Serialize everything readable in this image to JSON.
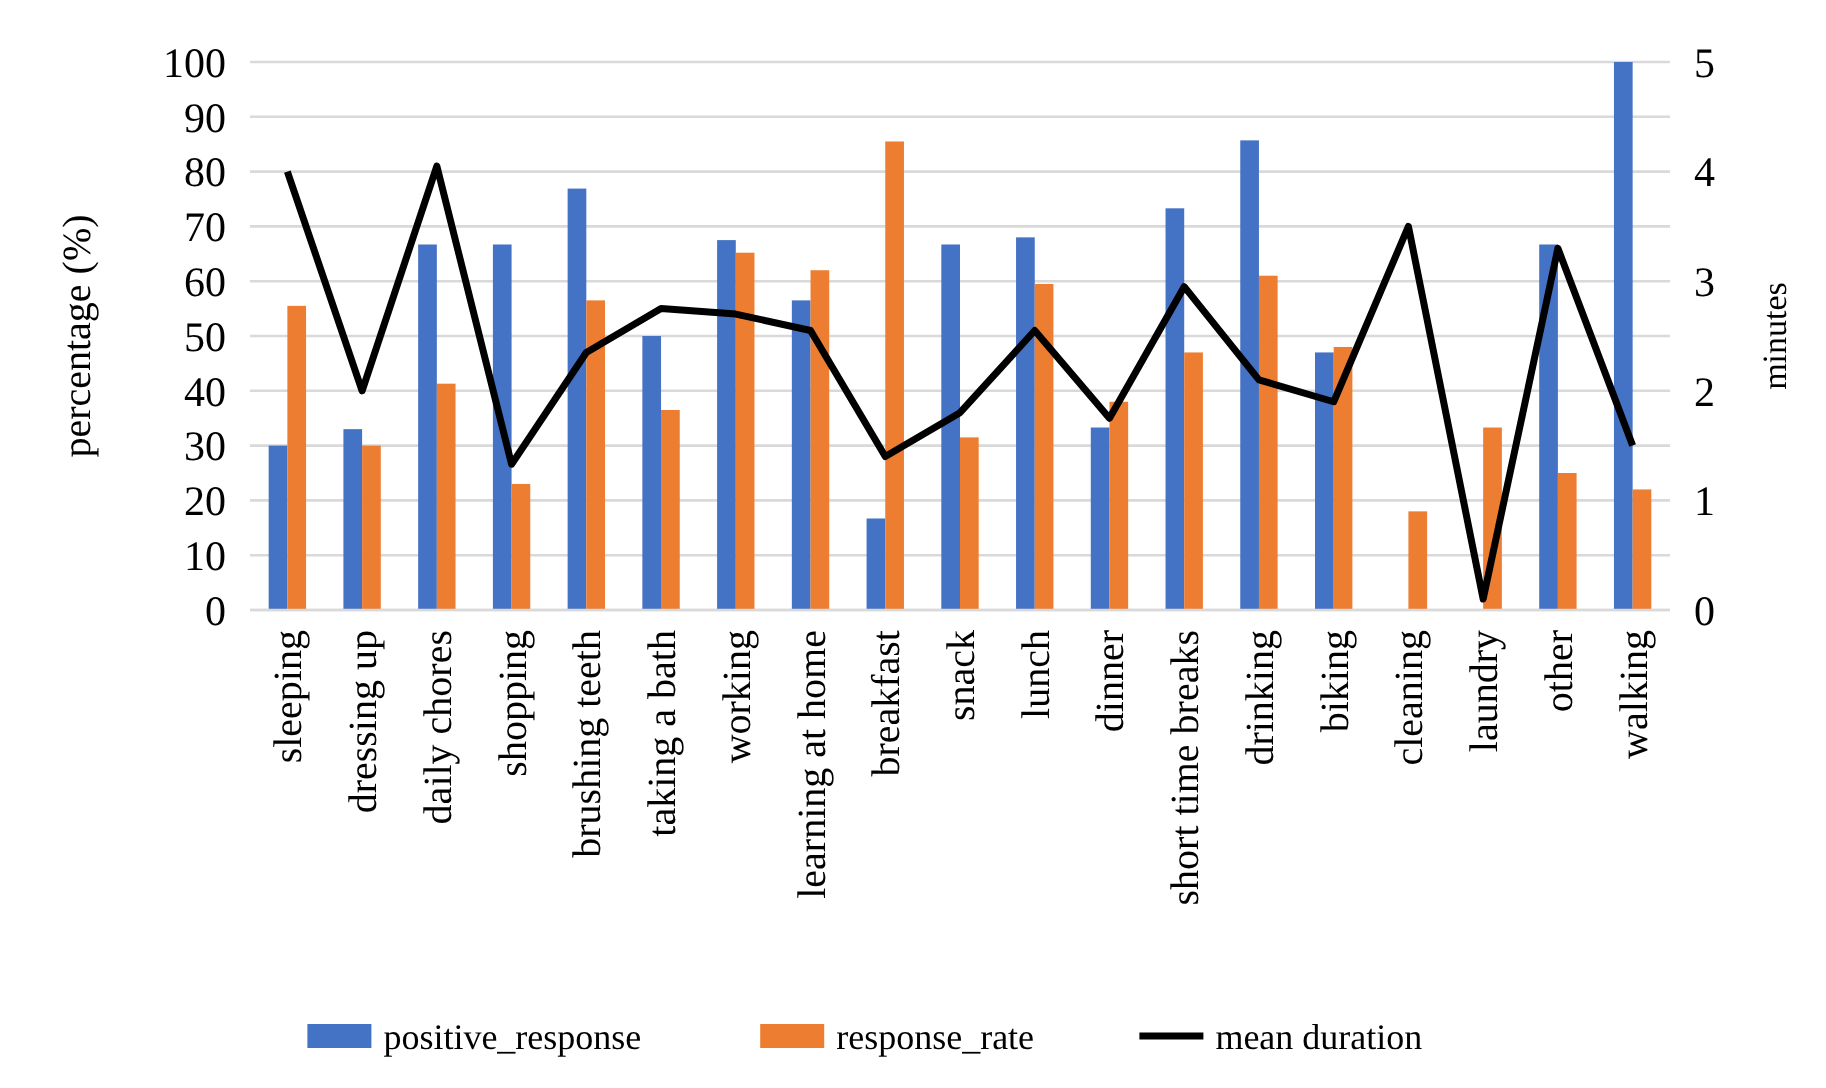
{
  "chart_data": {
    "type": "bar",
    "ylabel": "percentage (%)",
    "y2label": "minutes",
    "categories": [
      "sleeping",
      "dressing up",
      "daily chores",
      "shopping",
      "brushing teeth",
      "taking a bath",
      "working",
      "learning at home",
      "breakfast",
      "snack",
      "lunch",
      "dinner",
      "short time breaks",
      "drinking",
      "biking",
      "cleaning",
      "laundry",
      "other",
      "walking"
    ],
    "series": [
      {
        "name": "positive_response",
        "color": "#4472c4",
        "values": [
          30,
          33,
          66.7,
          66.7,
          76.9,
          50,
          67.5,
          56.5,
          16.7,
          66.7,
          68,
          33.3,
          73.3,
          85.7,
          47,
          0,
          0,
          66.7,
          100
        ]
      },
      {
        "name": "response_rate",
        "color": "#ed7d31",
        "values": [
          55.5,
          30,
          41.3,
          23,
          56.5,
          36.5,
          65.2,
          62,
          85.5,
          31.5,
          59.5,
          38,
          47,
          61,
          48,
          18,
          33.3,
          25,
          22
        ]
      },
      {
        "name": "mean duration",
        "type": "line",
        "axis": "y2",
        "color": "#000000",
        "values": [
          4.0,
          2.0,
          4.05,
          1.33,
          2.35,
          2.75,
          2.7,
          2.55,
          1.4,
          1.8,
          2.55,
          1.75,
          2.95,
          2.1,
          1.9,
          3.5,
          0.1,
          3.3,
          1.5
        ]
      }
    ],
    "ylim": [
      0,
      100
    ],
    "yticks": [
      0,
      10,
      20,
      30,
      40,
      50,
      60,
      70,
      80,
      90,
      100
    ],
    "y2lim": [
      0,
      5
    ],
    "y2ticks": [
      0,
      1,
      2,
      3,
      4,
      5
    ],
    "grid": "y",
    "legend": "bottom",
    "marker": "none"
  }
}
